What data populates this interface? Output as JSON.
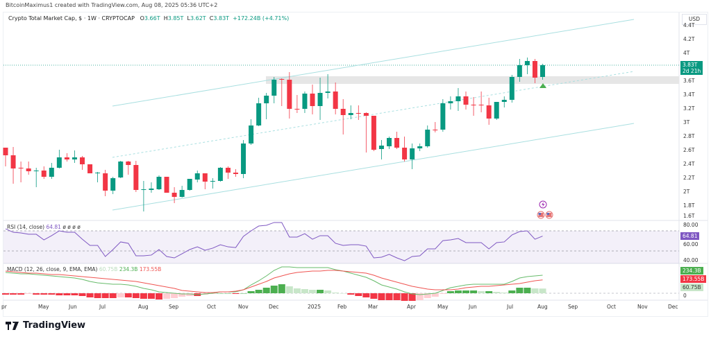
{
  "credit": "BitcoinMaximus1 created with TradingView.com, Aug 08, 2025 05:36 UTC+2",
  "legend": {
    "symbol": "Crypto Total Market Cap, $ · 1W · CRYPTOCAP",
    "open_label": "O",
    "open": "3.66T",
    "high_label": "H",
    "high": "3.85T",
    "low_label": "L",
    "low": "3.62T",
    "close_label": "C",
    "close": "3.83T",
    "change": "+172.24B (+4.71%)"
  },
  "price_axis": {
    "currency": "USD",
    "ticks": [
      "4.4T",
      "4.2T",
      "4T",
      "3.6T",
      "3.4T",
      "3.2T",
      "3T",
      "2.8T",
      "2.6T",
      "2.4T",
      "2.2T",
      "2T",
      "1.8T",
      "1.6T"
    ],
    "tick_values": [
      4.4,
      4.2,
      4.0,
      3.6,
      3.4,
      3.2,
      3.0,
      2.8,
      2.6,
      2.4,
      2.2,
      2.0,
      1.8,
      1.6
    ],
    "last_price_tag": "3.83T",
    "countdown": "2d 21h"
  },
  "time_axis": [
    "pr",
    "May",
    "Jun",
    "Jul",
    "Aug",
    "Sep",
    "Oct",
    "Nov",
    "Dec",
    "2025",
    "Feb",
    "Mar",
    "Apr",
    "May",
    "Jun",
    "Jul",
    "Aug",
    "Sep",
    "Oct",
    "Nov",
    "Dec"
  ],
  "colors": {
    "up": "#089981",
    "down": "#f23645",
    "channel": "#a8dfe0",
    "rsi": "#7e57c2",
    "macd": "#66bb6a",
    "signal": "#ef5350",
    "zone": "#e6e6e6"
  },
  "candles": [
    [
      2.64,
      2.64,
      2.37,
      2.53
    ],
    [
      2.53,
      2.65,
      2.12,
      2.34
    ],
    [
      2.35,
      2.44,
      2.14,
      2.34
    ],
    [
      2.34,
      2.44,
      2.25,
      2.3
    ],
    [
      2.3,
      2.35,
      2.07,
      2.31
    ],
    [
      2.31,
      2.37,
      2.19,
      2.22
    ],
    [
      2.22,
      2.42,
      2.19,
      2.35
    ],
    [
      2.35,
      2.61,
      2.34,
      2.5
    ],
    [
      2.5,
      2.56,
      2.44,
      2.47
    ],
    [
      2.47,
      2.6,
      2.42,
      2.5
    ],
    [
      2.5,
      2.52,
      2.32,
      2.4
    ],
    [
      2.4,
      2.4,
      2.27,
      2.27
    ],
    [
      2.27,
      2.29,
      2.14,
      2.28
    ],
    [
      2.27,
      2.32,
      1.94,
      2.02
    ],
    [
      2.02,
      2.22,
      1.97,
      2.2
    ],
    [
      2.21,
      2.45,
      2.2,
      2.44
    ],
    [
      2.44,
      2.45,
      2.25,
      2.39
    ],
    [
      2.39,
      2.45,
      2.0,
      2.03
    ],
    [
      2.03,
      2.16,
      1.72,
      2.04
    ],
    [
      2.03,
      2.14,
      1.99,
      2.05
    ],
    [
      2.04,
      2.24,
      2.03,
      2.22
    ],
    [
      2.22,
      2.22,
      1.99,
      1.99
    ],
    [
      1.99,
      2.07,
      1.84,
      1.93
    ],
    [
      1.93,
      2.09,
      1.92,
      2.03
    ],
    [
      2.03,
      2.19,
      2.02,
      2.19
    ],
    [
      2.18,
      2.31,
      2.14,
      2.27
    ],
    [
      2.27,
      2.27,
      2.04,
      2.15
    ],
    [
      2.15,
      2.2,
      2.05,
      2.16
    ],
    [
      2.16,
      2.36,
      2.15,
      2.35
    ],
    [
      2.35,
      2.37,
      2.19,
      2.28
    ],
    [
      2.28,
      2.33,
      2.22,
      2.26
    ],
    [
      2.26,
      2.75,
      2.2,
      2.7
    ],
    [
      2.7,
      3.05,
      2.68,
      2.96
    ],
    [
      2.96,
      3.36,
      2.95,
      3.28
    ],
    [
      3.28,
      3.43,
      3.05,
      3.39
    ],
    [
      3.39,
      3.66,
      3.28,
      3.62
    ],
    [
      3.63,
      3.64,
      3.24,
      3.62
    ],
    [
      3.62,
      3.73,
      3.06,
      3.2
    ],
    [
      3.2,
      3.4,
      3.14,
      3.19
    ],
    [
      3.2,
      3.45,
      3.14,
      3.42
    ],
    [
      3.42,
      3.55,
      3.12,
      3.24
    ],
    [
      3.24,
      3.65,
      3.04,
      3.43
    ],
    [
      3.43,
      3.7,
      3.35,
      3.45
    ],
    [
      3.45,
      3.58,
      3.12,
      3.2
    ],
    [
      3.2,
      3.34,
      2.83,
      3.11
    ],
    [
      3.11,
      3.25,
      3.05,
      3.14
    ],
    [
      3.14,
      3.25,
      3.04,
      3.13
    ],
    [
      3.14,
      3.15,
      2.57,
      3.1
    ],
    [
      3.1,
      3.1,
      2.59,
      2.61
    ],
    [
      2.62,
      2.75,
      2.47,
      2.67
    ],
    [
      2.66,
      2.8,
      2.62,
      2.78
    ],
    [
      2.78,
      2.87,
      2.62,
      2.64
    ],
    [
      2.64,
      2.8,
      2.44,
      2.47
    ],
    [
      2.47,
      2.7,
      2.33,
      2.63
    ],
    [
      2.63,
      2.7,
      2.59,
      2.66
    ],
    [
      2.66,
      2.96,
      2.64,
      2.9
    ],
    [
      2.9,
      3.01,
      2.86,
      2.89
    ],
    [
      2.9,
      3.34,
      2.87,
      3.28
    ],
    [
      3.28,
      3.38,
      3.19,
      3.31
    ],
    [
      3.31,
      3.5,
      3.17,
      3.38
    ],
    [
      3.38,
      3.45,
      3.19,
      3.26
    ],
    [
      3.26,
      3.37,
      3.1,
      3.25
    ],
    [
      3.26,
      3.45,
      3.15,
      3.25
    ],
    [
      3.25,
      3.36,
      2.97,
      3.06
    ],
    [
      3.06,
      3.3,
      3.04,
      3.3
    ],
    [
      3.3,
      3.38,
      3.22,
      3.33
    ],
    [
      3.33,
      3.69,
      3.29,
      3.66
    ],
    [
      3.66,
      3.92,
      3.59,
      3.83
    ],
    [
      3.83,
      3.94,
      3.7,
      3.89
    ],
    [
      3.89,
      3.92,
      3.57,
      3.65
    ],
    [
      3.66,
      3.85,
      3.62,
      3.83
    ]
  ],
  "rsi": {
    "header": "RSI (14, close)",
    "value": "64.81",
    "extra": "ø ø ø ø",
    "ticks": [
      "80.00",
      "60.00",
      "40.00"
    ],
    "tick_values": [
      80,
      60,
      40
    ],
    "bands": [
      70,
      50,
      30
    ],
    "values": [
      72,
      68.6,
      67.9,
      66.6,
      66.6,
      61,
      65.2,
      70,
      68.6,
      68.6,
      61.7,
      55.5,
      55.5,
      44.5,
      51.4,
      59,
      57.6,
      45.2,
      45.2,
      45.9,
      51.4,
      44.5,
      43.1,
      47.2,
      51.4,
      54.1,
      50.7,
      52.8,
      56.2,
      54.1,
      53.4,
      64.5,
      70,
      74.8,
      75.5,
      78.3,
      78.3,
      63.8,
      63.8,
      67.2,
      61.7,
      65.2,
      65.2,
      57.6,
      55.5,
      56.2,
      56.2,
      54.8,
      43.1,
      43.8,
      46.6,
      43.1,
      40.3,
      44.5,
      45.2,
      52.1,
      52.1,
      60.3,
      61,
      62.4,
      58.3,
      58.3,
      58.3,
      52.1,
      58.3,
      59,
      65.9,
      69.3,
      70,
      61.7,
      64.81
    ]
  },
  "macd": {
    "header": "MACD (12, 26, close, 9, EMA, EMA)",
    "hist_value": "60.75B",
    "macd_value": "234.3B",
    "signal_value": "173.55B",
    "zero_tick": "0",
    "macd_line": [
      270,
      261,
      252,
      252,
      243,
      234,
      225,
      216,
      207,
      198,
      180,
      153,
      135,
      126,
      117,
      117,
      108,
      90,
      63,
      45,
      18,
      9,
      0,
      -9,
      -9,
      -18,
      -9,
      0,
      18,
      18,
      18,
      45,
      108,
      162,
      225,
      297,
      342,
      342,
      333,
      333,
      333,
      333,
      333,
      306,
      288,
      261,
      234,
      207,
      162,
      108,
      81,
      54,
      18,
      -9,
      -18,
      -9,
      0,
      36,
      72,
      90,
      108,
      117,
      117,
      117,
      117,
      117,
      153,
      198,
      216,
      225,
      234.3
    ],
    "signal_line": [
      288,
      279,
      270,
      261,
      261,
      252,
      243,
      243,
      234,
      225,
      216,
      207,
      198,
      189,
      180,
      171,
      162,
      153,
      135,
      117,
      99,
      81,
      63,
      36,
      27,
      18,
      9,
      9,
      18,
      18,
      27,
      45,
      81,
      117,
      153,
      198,
      225,
      252,
      270,
      279,
      288,
      288,
      297,
      297,
      288,
      279,
      270,
      261,
      234,
      198,
      171,
      144,
      117,
      90,
      72,
      54,
      45,
      45,
      45,
      54,
      72,
      81,
      90,
      90,
      99,
      108,
      117,
      126,
      144,
      162,
      173.55
    ]
  },
  "events": {
    "lightning": "lightning-event-icon",
    "flags": [
      "us-flag-icon",
      "us-flag-icon"
    ]
  },
  "logo": {
    "text": "TradingView"
  }
}
